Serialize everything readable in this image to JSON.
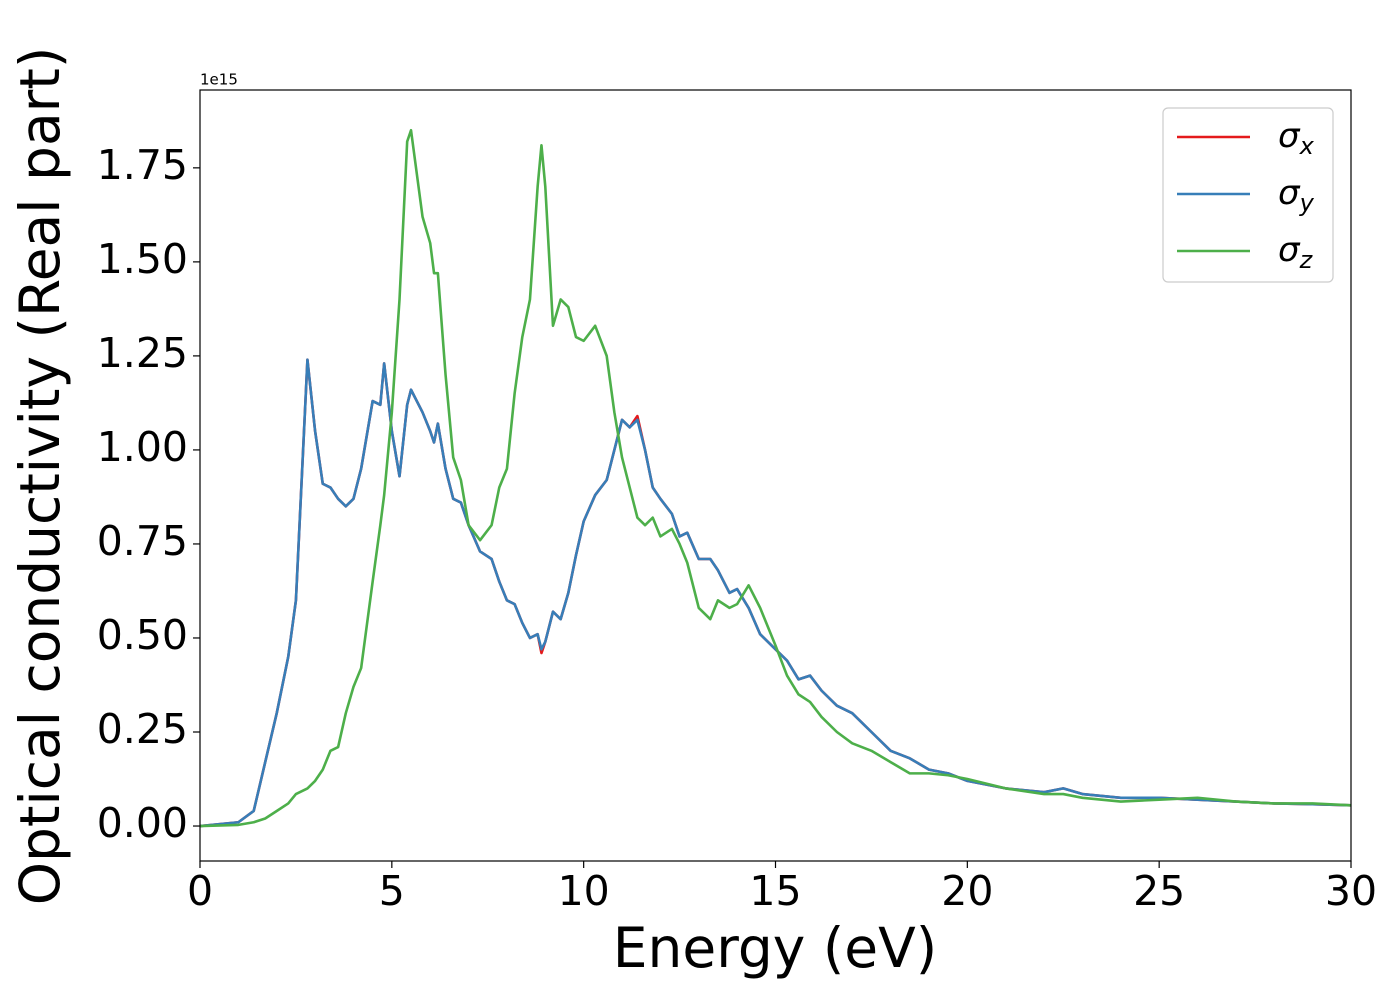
{
  "chart_data": {
    "type": "line",
    "x_label": "Energy (eV)",
    "y_label": "Optical conductivity (Real part)",
    "y_offset_label": "1e15",
    "xlim": [
      0,
      30
    ],
    "xticks": [
      0,
      5,
      10,
      15,
      20,
      25,
      30
    ],
    "ylim": [
      -0.093,
      1.957
    ],
    "yticks": [
      {
        "value": 0,
        "label": "0.00"
      },
      {
        "value": 0.25,
        "label": "0.25"
      },
      {
        "value": 0.5,
        "label": "0.50"
      },
      {
        "value": 0.75,
        "label": "0.75"
      },
      {
        "value": 1,
        "label": "1.00"
      },
      {
        "value": 1.25,
        "label": "1.25"
      },
      {
        "value": 1.5,
        "label": "1.50"
      },
      {
        "value": 1.75,
        "label": "1.75"
      }
    ],
    "legend": "upper right",
    "x": [
      0,
      1,
      1.4,
      1.7,
      2,
      2.3,
      2.5,
      2.8,
      3,
      3.2,
      3.4,
      3.6,
      3.8,
      4,
      4.2,
      4.5,
      4.7,
      4.8,
      5,
      5.2,
      5.4,
      5.5,
      5.8,
      6,
      6.1,
      6.2,
      6.4,
      6.6,
      6.8,
      7,
      7.3,
      7.6,
      7.8,
      8,
      8.2,
      8.4,
      8.6,
      8.8,
      8.9,
      9,
      9.2,
      9.4,
      9.6,
      9.8,
      10,
      10.3,
      10.6,
      10.8,
      11,
      11.2,
      11.4,
      11.6,
      11.8,
      12,
      12.3,
      12.5,
      12.7,
      13,
      13.3,
      13.5,
      13.8,
      14,
      14.3,
      14.6,
      15,
      15.3,
      15.6,
      15.9,
      16.2,
      16.6,
      17,
      17.5,
      18,
      18.5,
      19,
      19.5,
      20,
      21,
      22,
      22.5,
      23,
      24,
      25,
      26,
      27,
      28,
      29,
      30
    ],
    "series": [
      {
        "name": "σx",
        "color": "#e41a1c",
        "values": [
          0,
          0.01,
          0.04,
          0.17,
          0.3,
          0.45,
          0.6,
          1.24,
          1.05,
          0.91,
          0.9,
          0.87,
          0.85,
          0.87,
          0.95,
          1.13,
          1.12,
          1.23,
          1.05,
          0.93,
          1.12,
          1.16,
          1.1,
          1.05,
          1.02,
          1.07,
          0.95,
          0.87,
          0.86,
          0.8,
          0.73,
          0.71,
          0.65,
          0.6,
          0.59,
          0.54,
          0.5,
          0.51,
          0.46,
          0.49,
          0.57,
          0.55,
          0.62,
          0.72,
          0.81,
          0.88,
          0.92,
          1.0,
          1.08,
          1.06,
          1.09,
          1.0,
          0.9,
          0.87,
          0.83,
          0.77,
          0.78,
          0.71,
          0.71,
          0.68,
          0.62,
          0.63,
          0.58,
          0.51,
          0.47,
          0.44,
          0.39,
          0.4,
          0.36,
          0.32,
          0.3,
          0.25,
          0.2,
          0.18,
          0.15,
          0.14,
          0.12,
          0.1,
          0.09,
          0.1,
          0.085,
          0.075,
          0.075,
          0.07,
          0.065,
          0.06,
          0.058,
          0.055
        ]
      },
      {
        "name": "σy",
        "color": "#377eb8",
        "values": [
          0,
          0.01,
          0.04,
          0.17,
          0.3,
          0.45,
          0.6,
          1.24,
          1.05,
          0.91,
          0.9,
          0.87,
          0.85,
          0.87,
          0.95,
          1.13,
          1.12,
          1.23,
          1.05,
          0.93,
          1.12,
          1.16,
          1.1,
          1.05,
          1.02,
          1.07,
          0.95,
          0.87,
          0.86,
          0.8,
          0.73,
          0.71,
          0.65,
          0.6,
          0.59,
          0.54,
          0.5,
          0.51,
          0.47,
          0.49,
          0.57,
          0.55,
          0.62,
          0.72,
          0.81,
          0.88,
          0.92,
          1.0,
          1.08,
          1.06,
          1.08,
          1.0,
          0.9,
          0.87,
          0.83,
          0.77,
          0.78,
          0.71,
          0.71,
          0.68,
          0.62,
          0.63,
          0.58,
          0.51,
          0.47,
          0.44,
          0.39,
          0.4,
          0.36,
          0.32,
          0.3,
          0.25,
          0.2,
          0.18,
          0.15,
          0.14,
          0.12,
          0.1,
          0.09,
          0.1,
          0.085,
          0.075,
          0.075,
          0.07,
          0.065,
          0.06,
          0.058,
          0.055
        ]
      },
      {
        "name": "σz",
        "color": "#4daf4a",
        "values": [
          0,
          0.003,
          0.01,
          0.02,
          0.04,
          0.06,
          0.085,
          0.1,
          0.12,
          0.15,
          0.2,
          0.21,
          0.3,
          0.37,
          0.42,
          0.65,
          0.8,
          0.88,
          1.1,
          1.4,
          1.82,
          1.85,
          1.62,
          1.55,
          1.47,
          1.47,
          1.2,
          0.98,
          0.92,
          0.8,
          0.76,
          0.8,
          0.9,
          0.95,
          1.15,
          1.3,
          1.4,
          1.7,
          1.81,
          1.7,
          1.33,
          1.4,
          1.38,
          1.3,
          1.29,
          1.33,
          1.25,
          1.1,
          0.98,
          0.9,
          0.82,
          0.8,
          0.82,
          0.77,
          0.79,
          0.75,
          0.7,
          0.58,
          0.55,
          0.6,
          0.58,
          0.59,
          0.64,
          0.58,
          0.48,
          0.4,
          0.35,
          0.33,
          0.29,
          0.25,
          0.22,
          0.2,
          0.17,
          0.14,
          0.14,
          0.135,
          0.125,
          0.1,
          0.085,
          0.085,
          0.075,
          0.065,
          0.07,
          0.075,
          0.065,
          0.06,
          0.06,
          0.055
        ]
      }
    ]
  }
}
